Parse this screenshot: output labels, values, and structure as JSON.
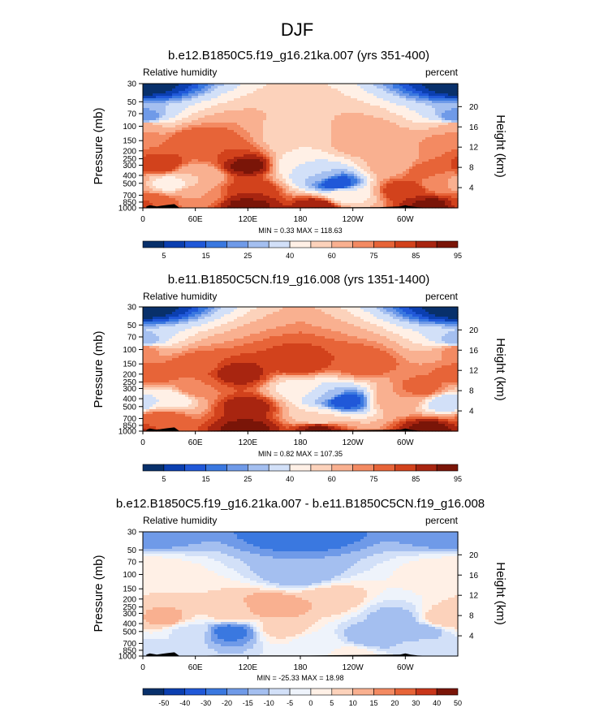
{
  "figure": {
    "title": "DJF"
  },
  "colors": {
    "abs_scale": [
      "#08306b",
      "#0b3fb0",
      "#2058d8",
      "#3a78e0",
      "#6f9ae8",
      "#a4bff0",
      "#d2e0f8",
      "#fff0e6",
      "#fcd2bb",
      "#f9b090",
      "#f38a62",
      "#e76438",
      "#d2421c",
      "#a82510",
      "#7a1508"
    ],
    "diff_scale": [
      "#08306b",
      "#0b3fb0",
      "#2058d8",
      "#3a78e0",
      "#6f9ae8",
      "#a4bff0",
      "#d2e0f8",
      "#eef3fb",
      "#fff0e6",
      "#fcd2bb",
      "#f9b090",
      "#f38a62",
      "#e76438",
      "#c8361a",
      "#7a1508"
    ],
    "topography": "#000000"
  },
  "chart_data": [
    {
      "type": "heatmap",
      "title": "b.e12.B1850C5.f19_g16.21ka.007 (yrs 351-400)",
      "left_label": "Relative humidity",
      "right_label": "percent",
      "ylabel": "Pressure (mb)",
      "ylabel_right": "Height (km)",
      "x_ticks": [
        "0",
        "60E",
        "120E",
        "180",
        "120W",
        "60W"
      ],
      "x_tick_lon": [
        0,
        60,
        120,
        180,
        240,
        300
      ],
      "xlim": [
        0,
        360
      ],
      "y_ticks": [
        "30",
        "50",
        "70",
        "100",
        "150",
        "200",
        "250",
        "300",
        "400",
        "500",
        "700",
        "850",
        "1000"
      ],
      "y_tick_p": [
        30,
        50,
        70,
        100,
        150,
        200,
        250,
        300,
        400,
        500,
        700,
        850,
        1000
      ],
      "ylim": [
        30,
        1000
      ],
      "height_ticks": [
        "20",
        "16",
        "12",
        "8",
        "4"
      ],
      "height_km": [
        20,
        16,
        12,
        8,
        4
      ],
      "stats": "MIN =   0.33  MAX = 118.63",
      "colorbar_labels": [
        "5",
        "15",
        "25",
        "40",
        "60",
        "75",
        "85",
        "95"
      ],
      "colorbar_levels": [
        5,
        10,
        15,
        20,
        25,
        30,
        40,
        50,
        60,
        70,
        75,
        80,
        85,
        90,
        95
      ],
      "features": [
        {
          "lon": 0,
          "p": 30,
          "v": 2
        },
        {
          "lon": 0,
          "p": 80,
          "v": 20
        },
        {
          "lon": 0,
          "p": 100,
          "v": 70
        },
        {
          "lon": 0,
          "p": 150,
          "v": 75
        },
        {
          "lon": 20,
          "p": 300,
          "v": 85
        },
        {
          "lon": 30,
          "p": 500,
          "v": 45
        },
        {
          "lon": 15,
          "p": 850,
          "v": 80
        },
        {
          "lon": 60,
          "p": 400,
          "v": 60
        },
        {
          "lon": 60,
          "p": 700,
          "v": 70
        },
        {
          "lon": 90,
          "p": 200,
          "v": 80
        },
        {
          "lon": 120,
          "p": 300,
          "v": 92
        },
        {
          "lon": 125,
          "p": 600,
          "v": 85
        },
        {
          "lon": 120,
          "p": 950,
          "v": 92
        },
        {
          "lon": 180,
          "p": 150,
          "v": 50
        },
        {
          "lon": 180,
          "p": 300,
          "v": 40
        },
        {
          "lon": 200,
          "p": 400,
          "v": 30
        },
        {
          "lon": 220,
          "p": 500,
          "v": 10
        },
        {
          "lon": 230,
          "p": 700,
          "v": 45
        },
        {
          "lon": 200,
          "p": 950,
          "v": 90
        },
        {
          "lon": 290,
          "p": 300,
          "v": 65
        },
        {
          "lon": 300,
          "p": 600,
          "v": 85
        },
        {
          "lon": 320,
          "p": 350,
          "v": 78
        },
        {
          "lon": 340,
          "p": 500,
          "v": 70
        },
        {
          "lon": 330,
          "p": 950,
          "v": 92
        },
        {
          "lon": 250,
          "p": 150,
          "v": 70
        },
        {
          "lon": 60,
          "p": 150,
          "v": 80
        }
      ],
      "topography": [
        [
          4,
          960
        ],
        [
          8,
          930
        ],
        [
          16,
          960
        ],
        [
          22,
          940
        ],
        [
          28,
          920
        ],
        [
          36,
          900
        ],
        [
          42,
          1000
        ],
        [
          270,
          980
        ],
        [
          294,
          960
        ],
        [
          300,
          930
        ],
        [
          306,
          960
        ],
        [
          314,
          980
        ],
        [
          328,
          1000
        ]
      ]
    },
    {
      "type": "heatmap",
      "title": "b.e11.B1850C5CN.f19_g16.008 (yrs 1351-1400)",
      "left_label": "Relative humidity",
      "right_label": "percent",
      "ylabel": "Pressure (mb)",
      "ylabel_right": "Height (km)",
      "x_ticks": [
        "0",
        "60E",
        "120E",
        "180",
        "120W",
        "60W"
      ],
      "x_tick_lon": [
        0,
        60,
        120,
        180,
        240,
        300
      ],
      "xlim": [
        0,
        360
      ],
      "y_ticks": [
        "30",
        "50",
        "70",
        "100",
        "150",
        "200",
        "250",
        "300",
        "400",
        "500",
        "700",
        "850",
        "1000"
      ],
      "y_tick_p": [
        30,
        50,
        70,
        100,
        150,
        200,
        250,
        300,
        400,
        500,
        700,
        850,
        1000
      ],
      "ylim": [
        30,
        1000
      ],
      "height_ticks": [
        "20",
        "16",
        "12",
        "8",
        "4"
      ],
      "height_km": [
        20,
        16,
        12,
        8,
        4
      ],
      "stats": "MIN =   0.82  MAX = 107.35",
      "colorbar_labels": [
        "5",
        "15",
        "25",
        "40",
        "60",
        "75",
        "85",
        "95"
      ],
      "colorbar_levels": [
        5,
        10,
        15,
        20,
        25,
        30,
        40,
        50,
        60,
        70,
        75,
        80,
        85,
        90,
        95
      ],
      "features": [
        {
          "lon": 0,
          "p": 30,
          "v": 2
        },
        {
          "lon": 0,
          "p": 80,
          "v": 25
        },
        {
          "lon": 0,
          "p": 100,
          "v": 75
        },
        {
          "lon": 10,
          "p": 200,
          "v": 80
        },
        {
          "lon": 30,
          "p": 400,
          "v": 40
        },
        {
          "lon": 20,
          "p": 700,
          "v": 80
        },
        {
          "lon": 60,
          "p": 300,
          "v": 75
        },
        {
          "lon": 110,
          "p": 200,
          "v": 88
        },
        {
          "lon": 120,
          "p": 500,
          "v": 88
        },
        {
          "lon": 120,
          "p": 950,
          "v": 92
        },
        {
          "lon": 180,
          "p": 150,
          "v": 85
        },
        {
          "lon": 180,
          "p": 300,
          "v": 45
        },
        {
          "lon": 210,
          "p": 350,
          "v": 30
        },
        {
          "lon": 230,
          "p": 420,
          "v": 10
        },
        {
          "lon": 200,
          "p": 700,
          "v": 50
        },
        {
          "lon": 200,
          "p": 950,
          "v": 92
        },
        {
          "lon": 250,
          "p": 150,
          "v": 80
        },
        {
          "lon": 290,
          "p": 400,
          "v": 70
        },
        {
          "lon": 320,
          "p": 300,
          "v": 78
        },
        {
          "lon": 350,
          "p": 450,
          "v": 30
        },
        {
          "lon": 330,
          "p": 950,
          "v": 92
        },
        {
          "lon": 60,
          "p": 150,
          "v": 78
        }
      ],
      "topography": [
        [
          4,
          960
        ],
        [
          8,
          930
        ],
        [
          16,
          960
        ],
        [
          22,
          940
        ],
        [
          28,
          920
        ],
        [
          36,
          900
        ],
        [
          42,
          1000
        ],
        [
          90,
          985
        ],
        [
          190,
          985
        ],
        [
          294,
          960
        ],
        [
          300,
          930
        ],
        [
          306,
          960
        ],
        [
          314,
          985
        ],
        [
          330,
          1000
        ]
      ]
    },
    {
      "type": "heatmap",
      "title": "b.e12.B1850C5.f19_g16.21ka.007 - b.e11.B1850C5CN.f19_g16.008",
      "left_label": "Relative humidity",
      "right_label": "percent",
      "ylabel": "Pressure (mb)",
      "ylabel_right": "Height (km)",
      "x_ticks": [
        "0",
        "60E",
        "120E",
        "180",
        "120W",
        "60W"
      ],
      "x_tick_lon": [
        0,
        60,
        120,
        180,
        240,
        300
      ],
      "xlim": [
        0,
        360
      ],
      "y_ticks": [
        "30",
        "50",
        "70",
        "100",
        "150",
        "200",
        "250",
        "300",
        "400",
        "500",
        "700",
        "850",
        "1000"
      ],
      "y_tick_p": [
        30,
        50,
        70,
        100,
        150,
        200,
        250,
        300,
        400,
        500,
        700,
        850,
        1000
      ],
      "ylim": [
        30,
        1000
      ],
      "height_ticks": [
        "20",
        "16",
        "12",
        "8",
        "4"
      ],
      "height_km": [
        20,
        16,
        12,
        8,
        4
      ],
      "stats": "MIN = -25.33  MAX =  18.98",
      "colorbar_labels": [
        "-50",
        "-40",
        "-30",
        "-20",
        "-15",
        "-10",
        "-5",
        "0",
        "5",
        "10",
        "15",
        "20",
        "30",
        "40",
        "50"
      ],
      "colorbar_levels": [
        -50,
        -40,
        -30,
        -20,
        -15,
        -10,
        -5,
        0,
        5,
        10,
        15,
        20,
        30,
        40,
        50
      ],
      "features": [
        {
          "lon": 0,
          "p": 30,
          "v": -20
        },
        {
          "lon": 180,
          "p": 30,
          "v": -25
        },
        {
          "lon": 0,
          "p": 100,
          "v": 5
        },
        {
          "lon": 25,
          "p": 350,
          "v": 12
        },
        {
          "lon": 50,
          "p": 500,
          "v": -6
        },
        {
          "lon": 100,
          "p": 500,
          "v": -22
        },
        {
          "lon": 100,
          "p": 300,
          "v": 8
        },
        {
          "lon": 150,
          "p": 250,
          "v": 15
        },
        {
          "lon": 160,
          "p": 450,
          "v": 8
        },
        {
          "lon": 210,
          "p": 200,
          "v": 10
        },
        {
          "lon": 200,
          "p": 700,
          "v": -3
        },
        {
          "lon": 260,
          "p": 600,
          "v": -15
        },
        {
          "lon": 290,
          "p": 350,
          "v": -12
        },
        {
          "lon": 320,
          "p": 500,
          "v": -14
        },
        {
          "lon": 345,
          "p": 350,
          "v": 10
        },
        {
          "lon": 330,
          "p": 800,
          "v": -5
        },
        {
          "lon": 20,
          "p": 850,
          "v": -6
        },
        {
          "lon": 180,
          "p": 100,
          "v": -15
        },
        {
          "lon": 240,
          "p": 950,
          "v": 2
        }
      ],
      "topography": [
        [
          4,
          960
        ],
        [
          8,
          930
        ],
        [
          16,
          960
        ],
        [
          22,
          940
        ],
        [
          28,
          920
        ],
        [
          36,
          900
        ],
        [
          42,
          1000
        ],
        [
          90,
          985
        ],
        [
          190,
          985
        ],
        [
          294,
          960
        ],
        [
          300,
          930
        ],
        [
          306,
          960
        ],
        [
          314,
          985
        ],
        [
          330,
          1000
        ]
      ]
    }
  ]
}
